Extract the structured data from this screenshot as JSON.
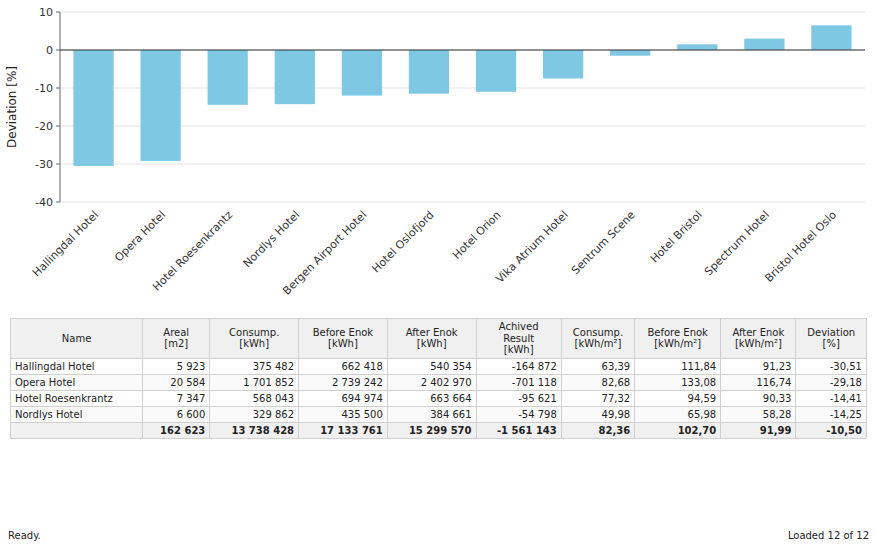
{
  "chart_data": [
    {
      "type": "bar",
      "ylabel": "Deviation [%]",
      "categories": [
        "Hallingdal Hotel",
        "Opera Hotel",
        "Hotel Roesenkrantz",
        "Nordlys Hotel",
        "Bergen Airport Hotel",
        "Hotel Oslofjord",
        "Hotel Orion",
        "Vika Atrium Hotel",
        "Sentrum Scene",
        "Hotel Bristol",
        "Spectrum Hotel",
        "Bristol Hotel Oslo"
      ],
      "values": [
        -30.51,
        -29.18,
        -14.41,
        -14.25,
        -12.0,
        -11.5,
        -11.0,
        -7.5,
        -1.5,
        1.5,
        3.0,
        6.5
      ],
      "color": "#7EC8E3",
      "ylim": [
        -40,
        10
      ],
      "yticks": [
        -40,
        -30,
        -20,
        -10,
        0,
        10
      ],
      "grid": true,
      "annotations": [
        "Ready.",
        "Loaded 12 of 12"
      ]
    },
    {
      "type": "table",
      "columns": [
        "Name",
        "Areal\n[m2]",
        "Consump.\n[kWh]",
        "Before Enok\n[kWh]",
        "After Enok\n[kWh]",
        "Achived\nResult\n[kWh]",
        "Consump.\n[kWh/m²]",
        "Before Enok\n[kWh/m²]",
        "After Enok\n[kWh/m²]",
        "Deviation\n[%]"
      ],
      "rows": [
        [
          "Hallingdal Hotel",
          "5 923",
          "375 482",
          "662 418",
          "540 354",
          "-164 872",
          "63,39",
          "111,84",
          "91,23",
          "-30,51"
        ],
        [
          "Opera Hotel",
          "20 584",
          "1 701 852",
          "2 739 242",
          "2 402 970",
          "-701 118",
          "82,68",
          "133,08",
          "116,74",
          "-29,18"
        ],
        [
          "Hotel Roesenkrantz",
          "7 347",
          "568 043",
          "694 974",
          "663 664",
          "-95 621",
          "77,32",
          "94,59",
          "90,33",
          "-14,41"
        ],
        [
          "Nordlys Hotel",
          "6 600",
          "329 862",
          "435 500",
          "384 661",
          "-54 798",
          "49,98",
          "65,98",
          "58,28",
          "-14,25"
        ]
      ],
      "total": [
        null,
        "162 623",
        "13 738 428",
        "17 133 761",
        "15 299 570",
        "-1 561 143",
        "82,36",
        "102,70",
        "91,99",
        "-10,50"
      ]
    }
  ]
}
